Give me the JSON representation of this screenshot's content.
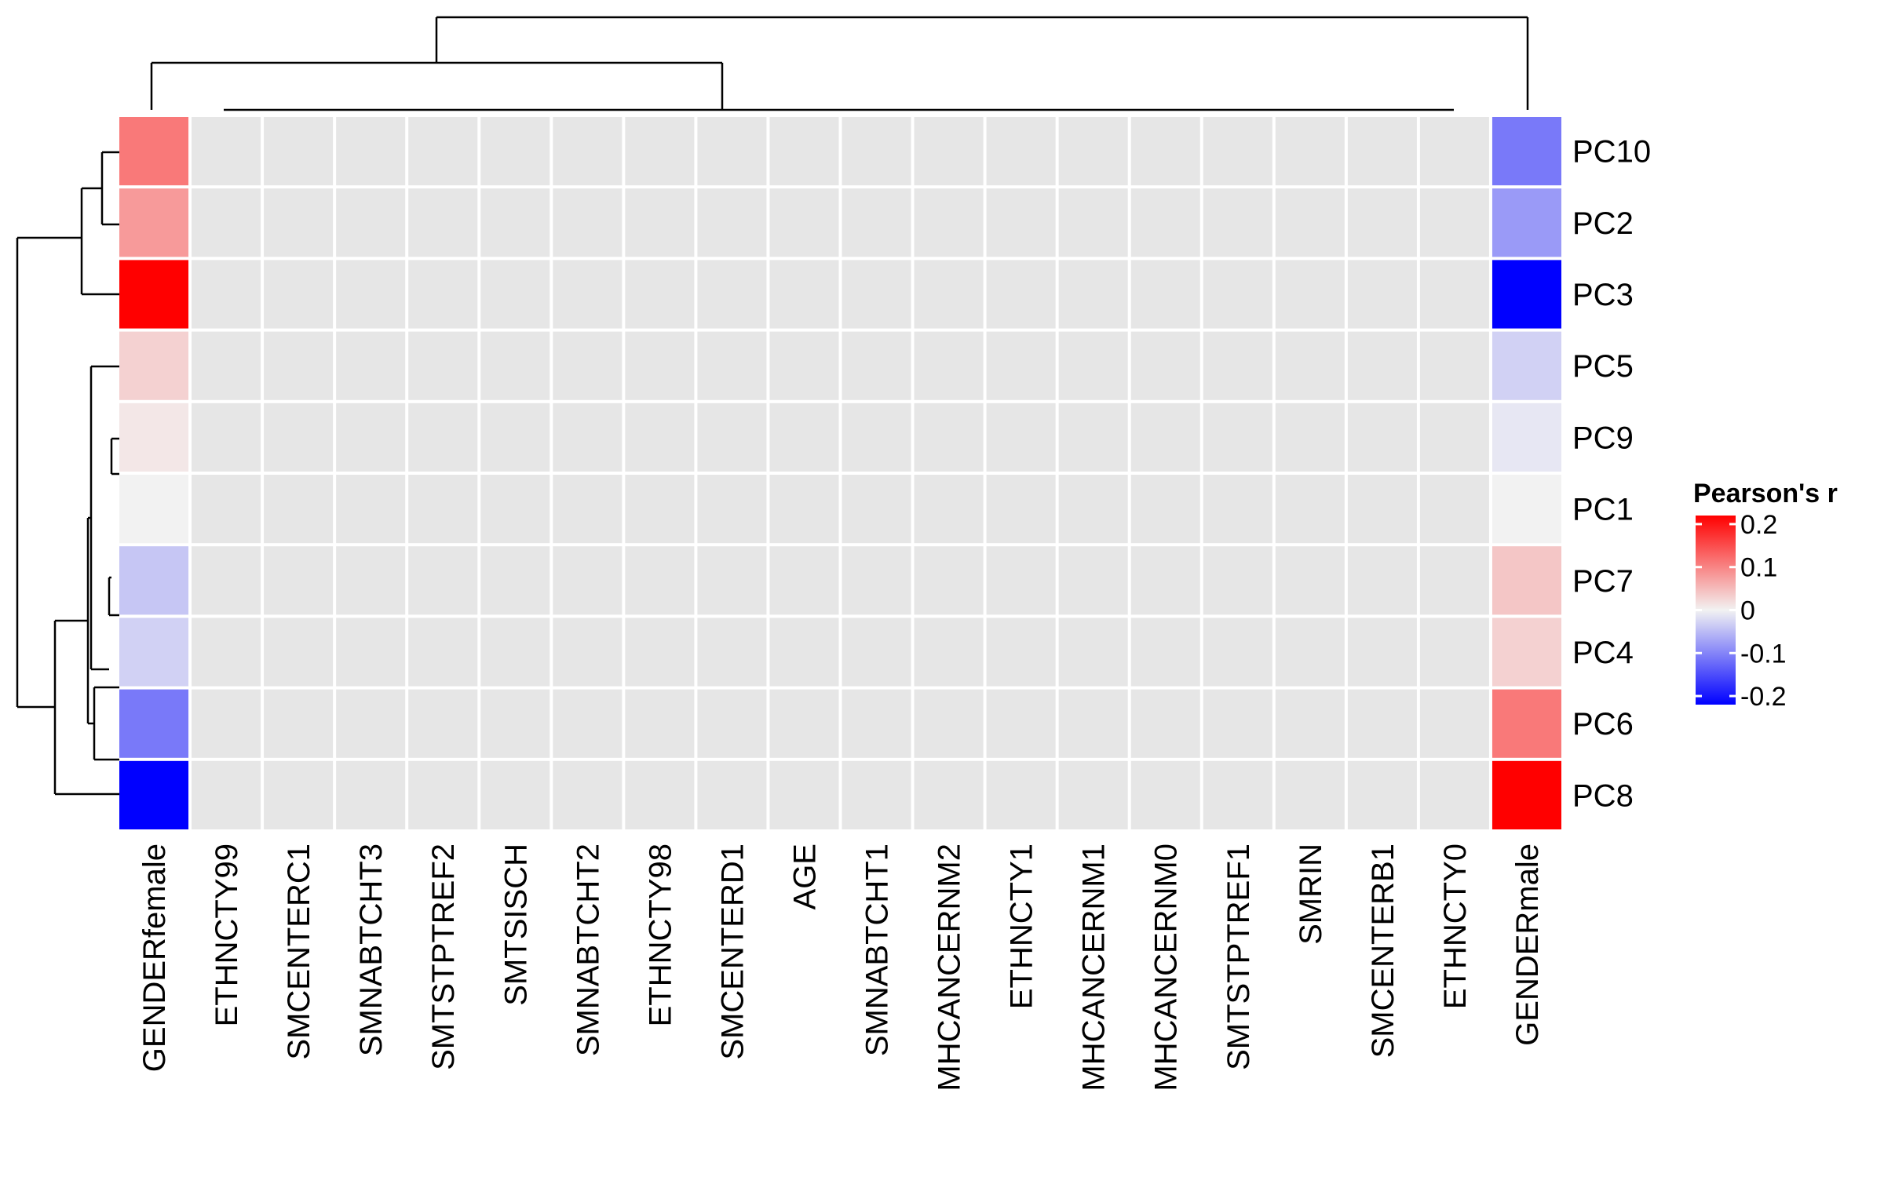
{
  "chart_data": {
    "type": "heatmap",
    "title": "",
    "xlabel": "",
    "ylabel": "",
    "rows": [
      "PC10",
      "PC2",
      "PC3",
      "PC5",
      "PC9",
      "PC1",
      "PC7",
      "PC4",
      "PC6",
      "PC8"
    ],
    "columns": [
      "GENDERfemale",
      "ETHNCTY99",
      "SMCENTERC1",
      "SMNABTCHT3",
      "SMTSTPTREF2",
      "SMTSISCH",
      "SMNABTCHT2",
      "ETHNCTY98",
      "SMCENTERD1",
      "AGE",
      "SMNABTCHT1",
      "MHCANCERNM2",
      "ETHNCTY1",
      "MHCANCERNM1",
      "MHCANCERNM0",
      "SMTSTPTREF1",
      "SMRIN",
      "SMCENTERB1",
      "ETHNCTY0",
      "GENDERmale"
    ],
    "values": [
      [
        0.11,
        null,
        null,
        null,
        null,
        null,
        null,
        null,
        null,
        null,
        null,
        null,
        null,
        null,
        null,
        null,
        null,
        null,
        null,
        -0.11
      ],
      [
        0.08,
        null,
        null,
        null,
        null,
        null,
        null,
        null,
        null,
        null,
        null,
        null,
        null,
        null,
        null,
        null,
        null,
        null,
        null,
        -0.08
      ],
      [
        0.22,
        null,
        null,
        null,
        null,
        null,
        null,
        null,
        null,
        null,
        null,
        null,
        null,
        null,
        null,
        null,
        null,
        null,
        null,
        -0.22
      ],
      [
        0.03,
        null,
        null,
        null,
        null,
        null,
        null,
        null,
        null,
        null,
        null,
        null,
        null,
        null,
        null,
        null,
        null,
        null,
        null,
        -0.03
      ],
      [
        0.01,
        null,
        null,
        null,
        null,
        null,
        null,
        null,
        null,
        null,
        null,
        null,
        null,
        null,
        null,
        null,
        null,
        null,
        null,
        -0.01
      ],
      [
        0.0,
        null,
        null,
        null,
        null,
        null,
        null,
        null,
        null,
        null,
        null,
        null,
        null,
        null,
        null,
        null,
        null,
        null,
        null,
        0.0
      ],
      [
        -0.04,
        null,
        null,
        null,
        null,
        null,
        null,
        null,
        null,
        null,
        null,
        null,
        null,
        null,
        null,
        null,
        null,
        null,
        null,
        0.04
      ],
      [
        -0.03,
        null,
        null,
        null,
        null,
        null,
        null,
        null,
        null,
        null,
        null,
        null,
        null,
        null,
        null,
        null,
        null,
        null,
        null,
        0.03
      ],
      [
        -0.11,
        null,
        null,
        null,
        null,
        null,
        null,
        null,
        null,
        null,
        null,
        null,
        null,
        null,
        null,
        null,
        null,
        null,
        null,
        0.11
      ],
      [
        -0.22,
        null,
        null,
        null,
        null,
        null,
        null,
        null,
        null,
        null,
        null,
        null,
        null,
        null,
        null,
        null,
        null,
        null,
        null,
        0.22
      ]
    ],
    "na_color": "#e6e6e6",
    "color_scale": {
      "low": "#0000ff",
      "mid": "#f2f2f2",
      "high": "#ff0000",
      "limits": [
        -0.22,
        0.22
      ]
    },
    "legend": {
      "title": "Pearson's r",
      "ticks": [
        0.2,
        0.1,
        0,
        -0.1,
        -0.2
      ],
      "tick_labels": [
        "0.2",
        "0.1",
        "0",
        "-0.1",
        "-0.2"
      ],
      "placement": "right"
    },
    "grid": false,
    "row_dendrogram": true,
    "column_dendrogram": true
  }
}
